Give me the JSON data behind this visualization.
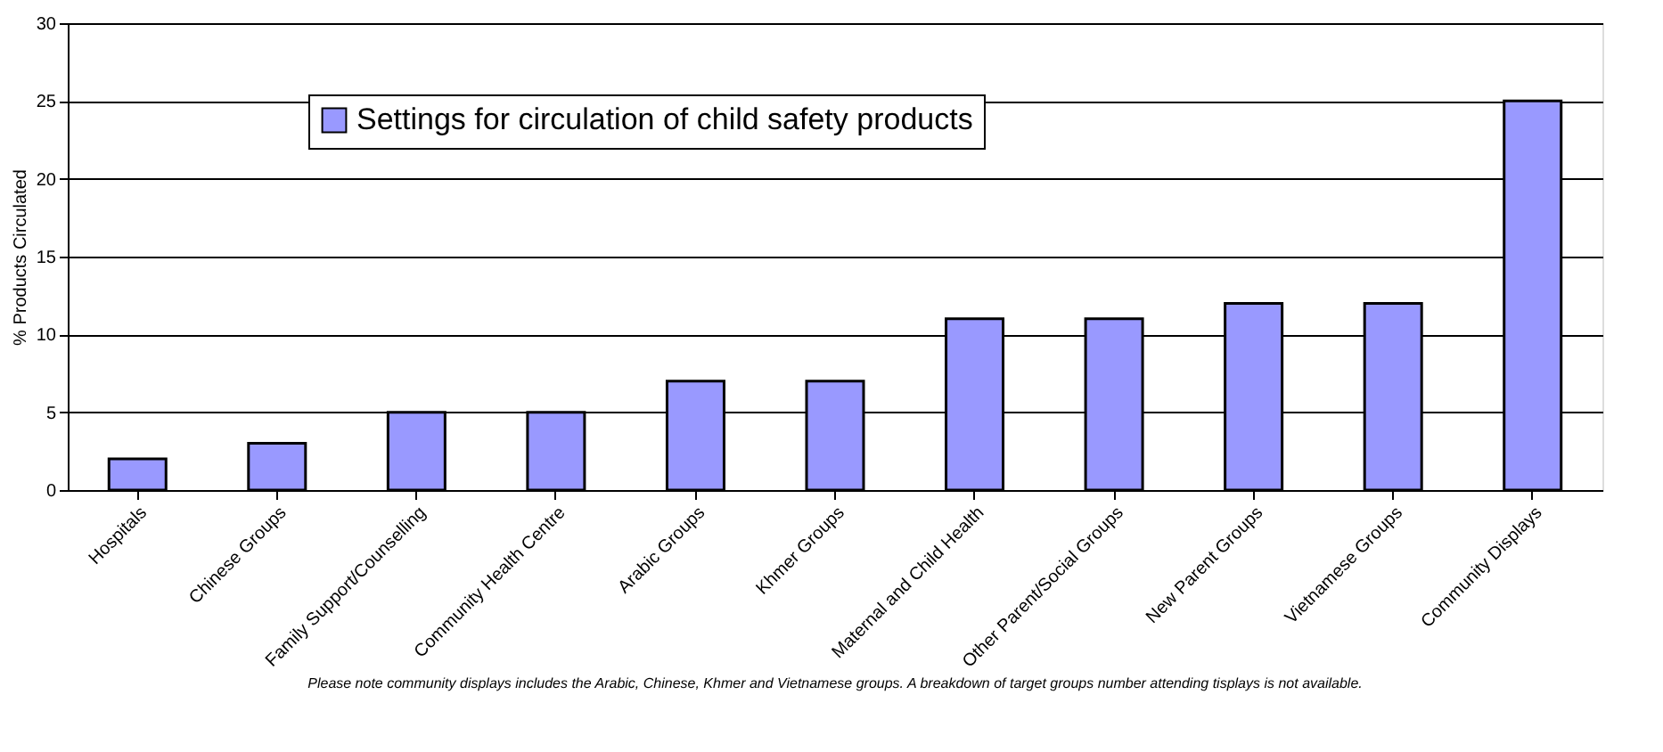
{
  "chart_data": {
    "type": "bar",
    "ylabel": "% Products Circulated",
    "categories": [
      "Hospitals",
      "Chinese Groups",
      "Family Support/Counselling",
      "Community Health Centre",
      "Arabic Groups",
      "Khmer Groups",
      "Maternal and Child Health",
      "Other Parent/Social Groups",
      "New Parent Groups",
      "Vietnamese Groups",
      "Community Displays"
    ],
    "series": [
      {
        "name": "Settings for circulation of child safety products",
        "color": "#9999ff",
        "values": [
          2,
          3,
          5,
          5,
          7,
          7,
          11,
          11,
          12,
          12,
          25
        ]
      }
    ],
    "ylim": [
      0,
      30
    ],
    "yticks": [
      0,
      5,
      10,
      15,
      20,
      25,
      30
    ],
    "grid": "y",
    "legend": "top left",
    "annotations": [
      "Please note community displays includes the Arabic, Chinese, Khmer and Vietnamese groups. A breakdown of target groups number attending tisplays is not available."
    ]
  }
}
